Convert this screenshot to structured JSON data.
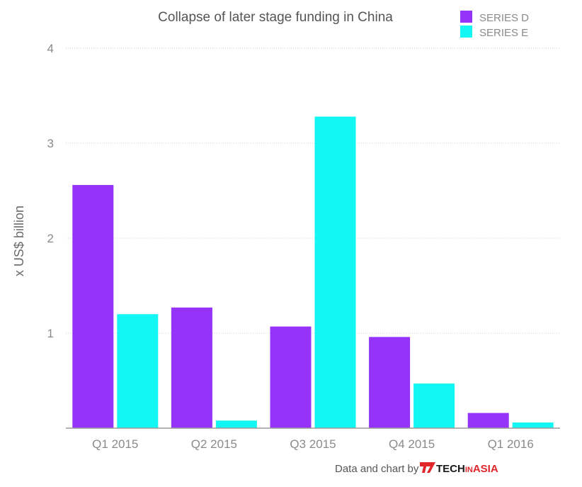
{
  "chart_data": {
    "type": "bar",
    "title": "Collapse of later stage funding in China",
    "xlabel": "",
    "ylabel": "x US$ billion",
    "ylim": [
      0,
      4
    ],
    "yticks": [
      "",
      "1",
      "2",
      "3",
      "4"
    ],
    "grid": true,
    "legend_position": "top-right",
    "categories": [
      "Q1 2015",
      "Q2 2015",
      "Q3 2015",
      "Q4 2015",
      "Q1 2016"
    ],
    "series": [
      {
        "name": "SERIES D",
        "color": "#9533fb",
        "values": [
          2.56,
          1.27,
          1.07,
          0.96,
          0.16
        ]
      },
      {
        "name": "SERIES E",
        "color": "#12f7f3",
        "values": [
          1.2,
          0.08,
          3.28,
          0.47,
          0.06
        ]
      }
    ]
  },
  "credit": {
    "text": "Data and chart by",
    "brand_tech": "TECH",
    "brand_in": "IN",
    "brand_asia": "ASIA",
    "logo_color": "#e0262b"
  }
}
